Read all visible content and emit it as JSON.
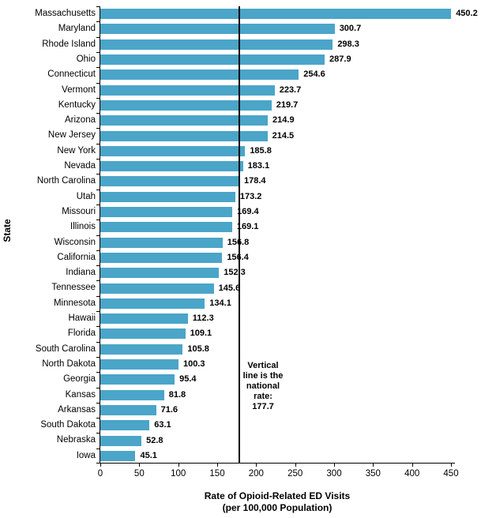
{
  "chart_data": {
    "type": "bar",
    "orientation": "horizontal",
    "xlabel": "Rate of Opioid-Related ED Visits\n(per 100,000 Population)",
    "ylabel": "State",
    "categories": [
      "Massachusetts",
      "Maryland",
      "Rhode Island",
      "Ohio",
      "Connecticut",
      "Vermont",
      "Kentucky",
      "Arizona",
      "New Jersey",
      "New York",
      "Nevada",
      "North Carolina",
      "Utah",
      "Missouri",
      "Illinois",
      "Wisconsin",
      "California",
      "Indiana",
      "Tennessee",
      "Minnesota",
      "Hawaii",
      "Florida",
      "South Carolina",
      "North Dakota",
      "Georgia",
      "Kansas",
      "Arkansas",
      "South Dakota",
      "Nebraska",
      "Iowa"
    ],
    "values": [
      450.2,
      300.7,
      298.3,
      287.9,
      254.6,
      223.7,
      219.7,
      214.9,
      214.5,
      185.8,
      183.1,
      178.4,
      173.2,
      169.4,
      169.1,
      156.8,
      156.4,
      152.3,
      145.6,
      134.1,
      112.3,
      109.1,
      105.8,
      100.3,
      95.4,
      81.8,
      71.6,
      63.1,
      52.8,
      45.1
    ],
    "value_labels": [
      "450.2",
      "300.7",
      "298.3",
      "287.9",
      "254.6",
      "223.7",
      "219.7",
      "214.9",
      "214.5",
      "185.8",
      "183.1",
      "178.4",
      "173.2",
      "169.4",
      "169.1",
      "156.8",
      "156.4",
      "152.3",
      "145.6",
      "134.1",
      "112.3",
      "109.1",
      "105.8",
      "100.3",
      "95.4",
      "81.8",
      "71.6",
      "63.1",
      "52.8",
      "45.1"
    ],
    "xlim": [
      0,
      450
    ],
    "x_ticks": [
      0,
      50,
      100,
      150,
      200,
      250,
      300,
      350,
      400,
      450
    ],
    "grid": false,
    "legend": null,
    "bar_color": "#4AA5C8",
    "reference_line": {
      "value": 177.7,
      "color": "#000000",
      "annotation": "Vertical\nline is the\nnational\nrate:\n177.7"
    }
  }
}
